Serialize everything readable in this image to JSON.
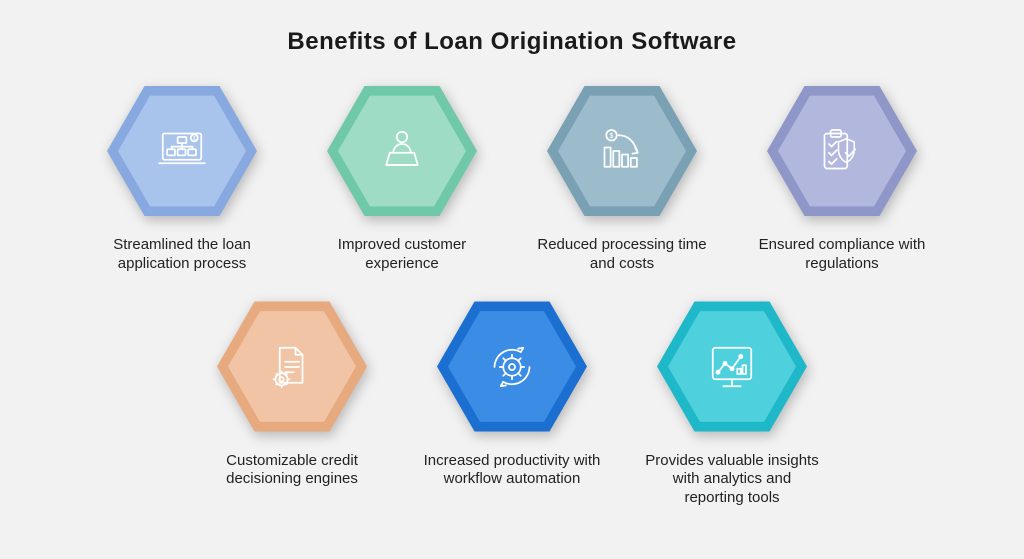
{
  "title": "Benefits of Loan Origination Software",
  "title_fontsize": 24,
  "title_color": "#0f0f0f",
  "background_color": "#f2f2f2",
  "icon_stroke": "#ffffff",
  "hex_outer_size": 150,
  "hex_inner_size": 128,
  "label_fontsize": 15,
  "label_color": "#222222",
  "items": [
    {
      "key": "streamlined",
      "label": "Streamlined the loan application process",
      "outer_color": "#88a9e0",
      "inner_color": "#a8c3ec",
      "icon": "workflow-laptop"
    },
    {
      "key": "customer",
      "label": "Improved customer experience",
      "outer_color": "#6fc9a8",
      "inner_color": "#9fdcc5",
      "icon": "user-laptop"
    },
    {
      "key": "reduced",
      "label": "Reduced processing time and costs",
      "outer_color": "#7aa0b3",
      "inner_color": "#9cbccc",
      "icon": "cost-down"
    },
    {
      "key": "compliance",
      "label": "Ensured compliance with regulations",
      "outer_color": "#8f97c9",
      "inner_color": "#b1b7dd",
      "icon": "clipboard-shield"
    },
    {
      "key": "credit",
      "label": "Customizable credit decisioning engines",
      "outer_color": "#e7a97e",
      "inner_color": "#f0c4a4",
      "icon": "doc-gear"
    },
    {
      "key": "productivity",
      "label": "Increased productivity with workflow automation",
      "outer_color": "#1b6fd0",
      "inner_color": "#3a8ce4",
      "icon": "gear-cycle"
    },
    {
      "key": "insights",
      "label": "Provides valuable insights with analytics and reporting tools",
      "outer_color": "#1fb8c9",
      "inner_color": "#4fd0dd",
      "icon": "analytics"
    }
  ],
  "layout": {
    "rows": [
      [
        0,
        1,
        2,
        3
      ],
      [
        4,
        5,
        6
      ]
    ],
    "row_gap": 18,
    "col_gap": 40
  }
}
